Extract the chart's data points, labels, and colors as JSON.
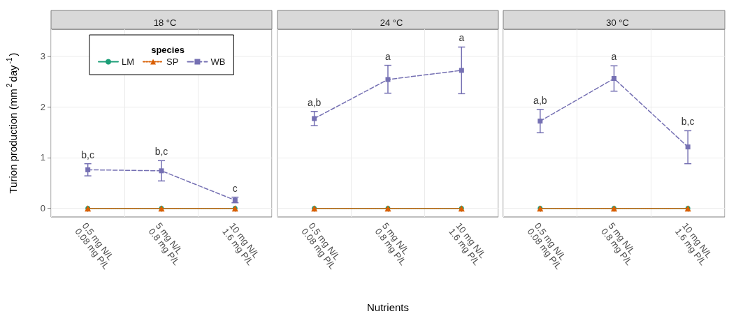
{
  "chart_data": [
    {
      "type": "line",
      "title": "18 °C",
      "ylabel": "Turion production (mm$^{2}$day$^{-1}$)",
      "legend_title": "species",
      "legend": "top left",
      "grid": true,
      "ylim": [
        -0.17,
        3.53
      ],
      "yticks": [
        0,
        1,
        2,
        3
      ],
      "categories": [
        "0.5 mg N/L\n0.08 mg P/L",
        "5 mg N/L\n0.8 mg P/L",
        "10 mg N/L\n1.6 mg P/L"
      ],
      "series": [
        {
          "name": "LM",
          "color": "#1b9e77",
          "marker": "circle",
          "line_style": "solid",
          "values": [
            0,
            0,
            0
          ]
        },
        {
          "name": "SP",
          "color": "#d95f02",
          "marker": "triangle",
          "line_style": "dotted",
          "values": [
            0,
            0,
            0
          ]
        },
        {
          "name": "WB",
          "color": "#7570b3",
          "marker": "square",
          "line_style": "dashed",
          "values": [
            0.76,
            0.74,
            0.16
          ],
          "errors": [
            [
              0.64,
              0.88
            ],
            [
              0.54,
              0.94
            ],
            [
              0.11,
              0.22
            ]
          ]
        }
      ],
      "annotations": [
        {
          "text": "b,c",
          "x": "0.5 mg N/L\n0.08 mg P/L",
          "y": 0.88
        },
        {
          "text": "b,c",
          "x": "5 mg N/L\n0.8 mg P/L",
          "y": 0.94
        },
        {
          "text": "c",
          "x": "10 mg N/L\n1.6 mg P/L",
          "y": 0.22
        }
      ]
    },
    {
      "type": "line",
      "title": "24 °C",
      "xlabel": "Nutrients",
      "grid": true,
      "tick_labels": "x",
      "ylim": [
        -0.17,
        3.53
      ],
      "yticks": [
        0,
        1,
        2,
        3
      ],
      "categories": [
        "0.5 mg N/L\n0.08 mg P/L",
        "5 mg N/L\n0.8 mg P/L",
        "10 mg N/L\n1.6 mg P/L"
      ],
      "series": [
        {
          "color": "#1b9e77",
          "marker": "circle",
          "line_style": "solid",
          "values": [
            0,
            0,
            0
          ]
        },
        {
          "color": "#d95f02",
          "marker": "triangle",
          "line_style": "dotted",
          "values": [
            0,
            0,
            0
          ]
        },
        {
          "color": "#7570b3",
          "marker": "square",
          "line_style": "dashed",
          "values": [
            1.77,
            2.54,
            2.72
          ],
          "errors": [
            [
              1.63,
              1.91
            ],
            [
              2.27,
              2.82
            ],
            [
              2.26,
              3.18
            ]
          ]
        }
      ],
      "annotations": [
        {
          "text": "a,b",
          "x": "0.5 mg N/L\n0.08 mg P/L",
          "y": 1.91
        },
        {
          "text": "a",
          "x": "5 mg N/L\n0.8 mg P/L",
          "y": 2.82
        },
        {
          "text": "a",
          "x": "10 mg N/L\n1.6 mg P/L",
          "y": 3.18
        }
      ]
    },
    {
      "type": "line",
      "title": "30 °C",
      "grid": true,
      "tick_labels": "x",
      "ylim": [
        -0.17,
        3.53
      ],
      "yticks": [
        0,
        1,
        2,
        3
      ],
      "categories": [
        "0.5 mg N/L\n0.08 mg P/L",
        "5 mg N/L\n0.8 mg P/L",
        "10 mg N/L\n1.6 mg P/L"
      ],
      "series": [
        {
          "color": "#1b9e77",
          "marker": "circle",
          "line_style": "solid",
          "values": [
            0,
            0,
            0
          ]
        },
        {
          "color": "#d95f02",
          "marker": "triangle",
          "line_style": "dotted",
          "values": [
            0,
            0,
            0
          ]
        },
        {
          "color": "#7570b3",
          "marker": "square",
          "line_style": "dashed",
          "values": [
            1.72,
            2.56,
            1.21
          ],
          "errors": [
            [
              1.49,
              1.95
            ],
            [
              2.31,
              2.81
            ],
            [
              0.88,
              1.53
            ]
          ]
        }
      ],
      "annotations": [
        {
          "text": "a,b",
          "x": "0.5 mg N/L\n0.08 mg P/L",
          "y": 1.95
        },
        {
          "text": "a",
          "x": "5 mg N/L\n0.8 mg P/L",
          "y": 2.81
        },
        {
          "text": "b,c",
          "x": "10 mg N/L\n1.6 mg P/L",
          "y": 1.53
        }
      ]
    }
  ]
}
